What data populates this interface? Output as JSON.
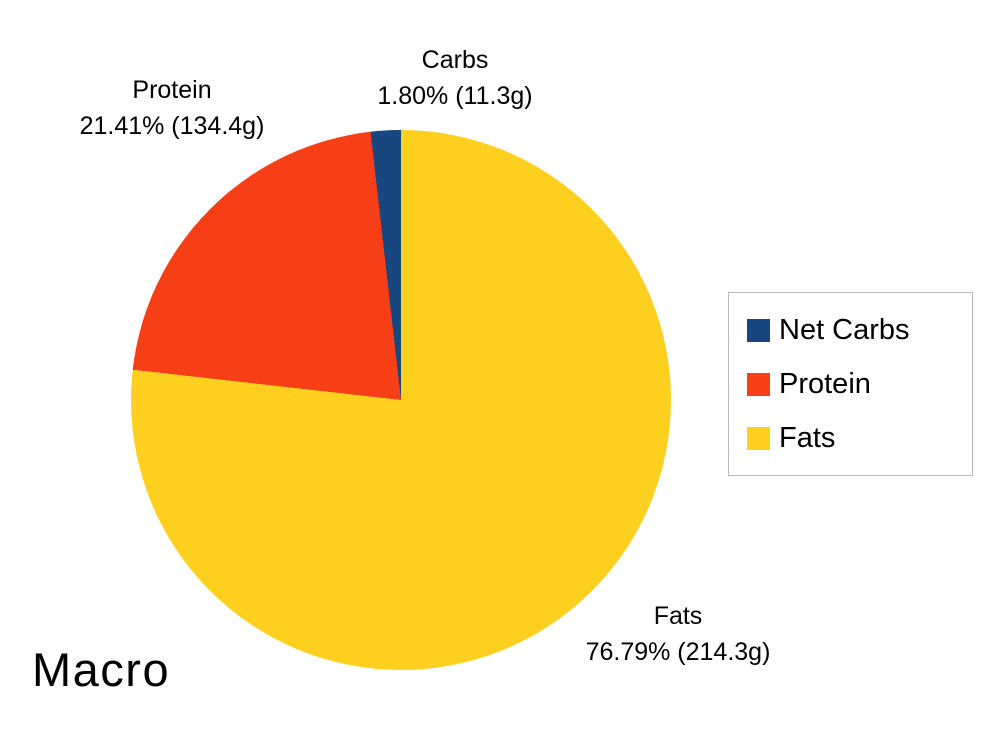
{
  "chart_data": {
    "type": "pie",
    "title": "Macro",
    "legend_position": "right",
    "rotation": "clockwise-from-top, drawn fats -> protein -> carbs",
    "slices": [
      {
        "label": "Net Carbs",
        "callout_label": "Carbs",
        "percent": 1.8,
        "grams": 11.3,
        "display": "1.80% (11.3g)",
        "color": "#17477e"
      },
      {
        "label": "Protein",
        "callout_label": "Protein",
        "percent": 21.41,
        "grams": 134.4,
        "display": "21.41% (134.4g)",
        "color": "#f63f16"
      },
      {
        "label": "Fats",
        "callout_label": "Fats",
        "percent": 76.79,
        "grams": 214.3,
        "display": "76.79% (214.3g)",
        "color": "#fdd020"
      }
    ]
  }
}
